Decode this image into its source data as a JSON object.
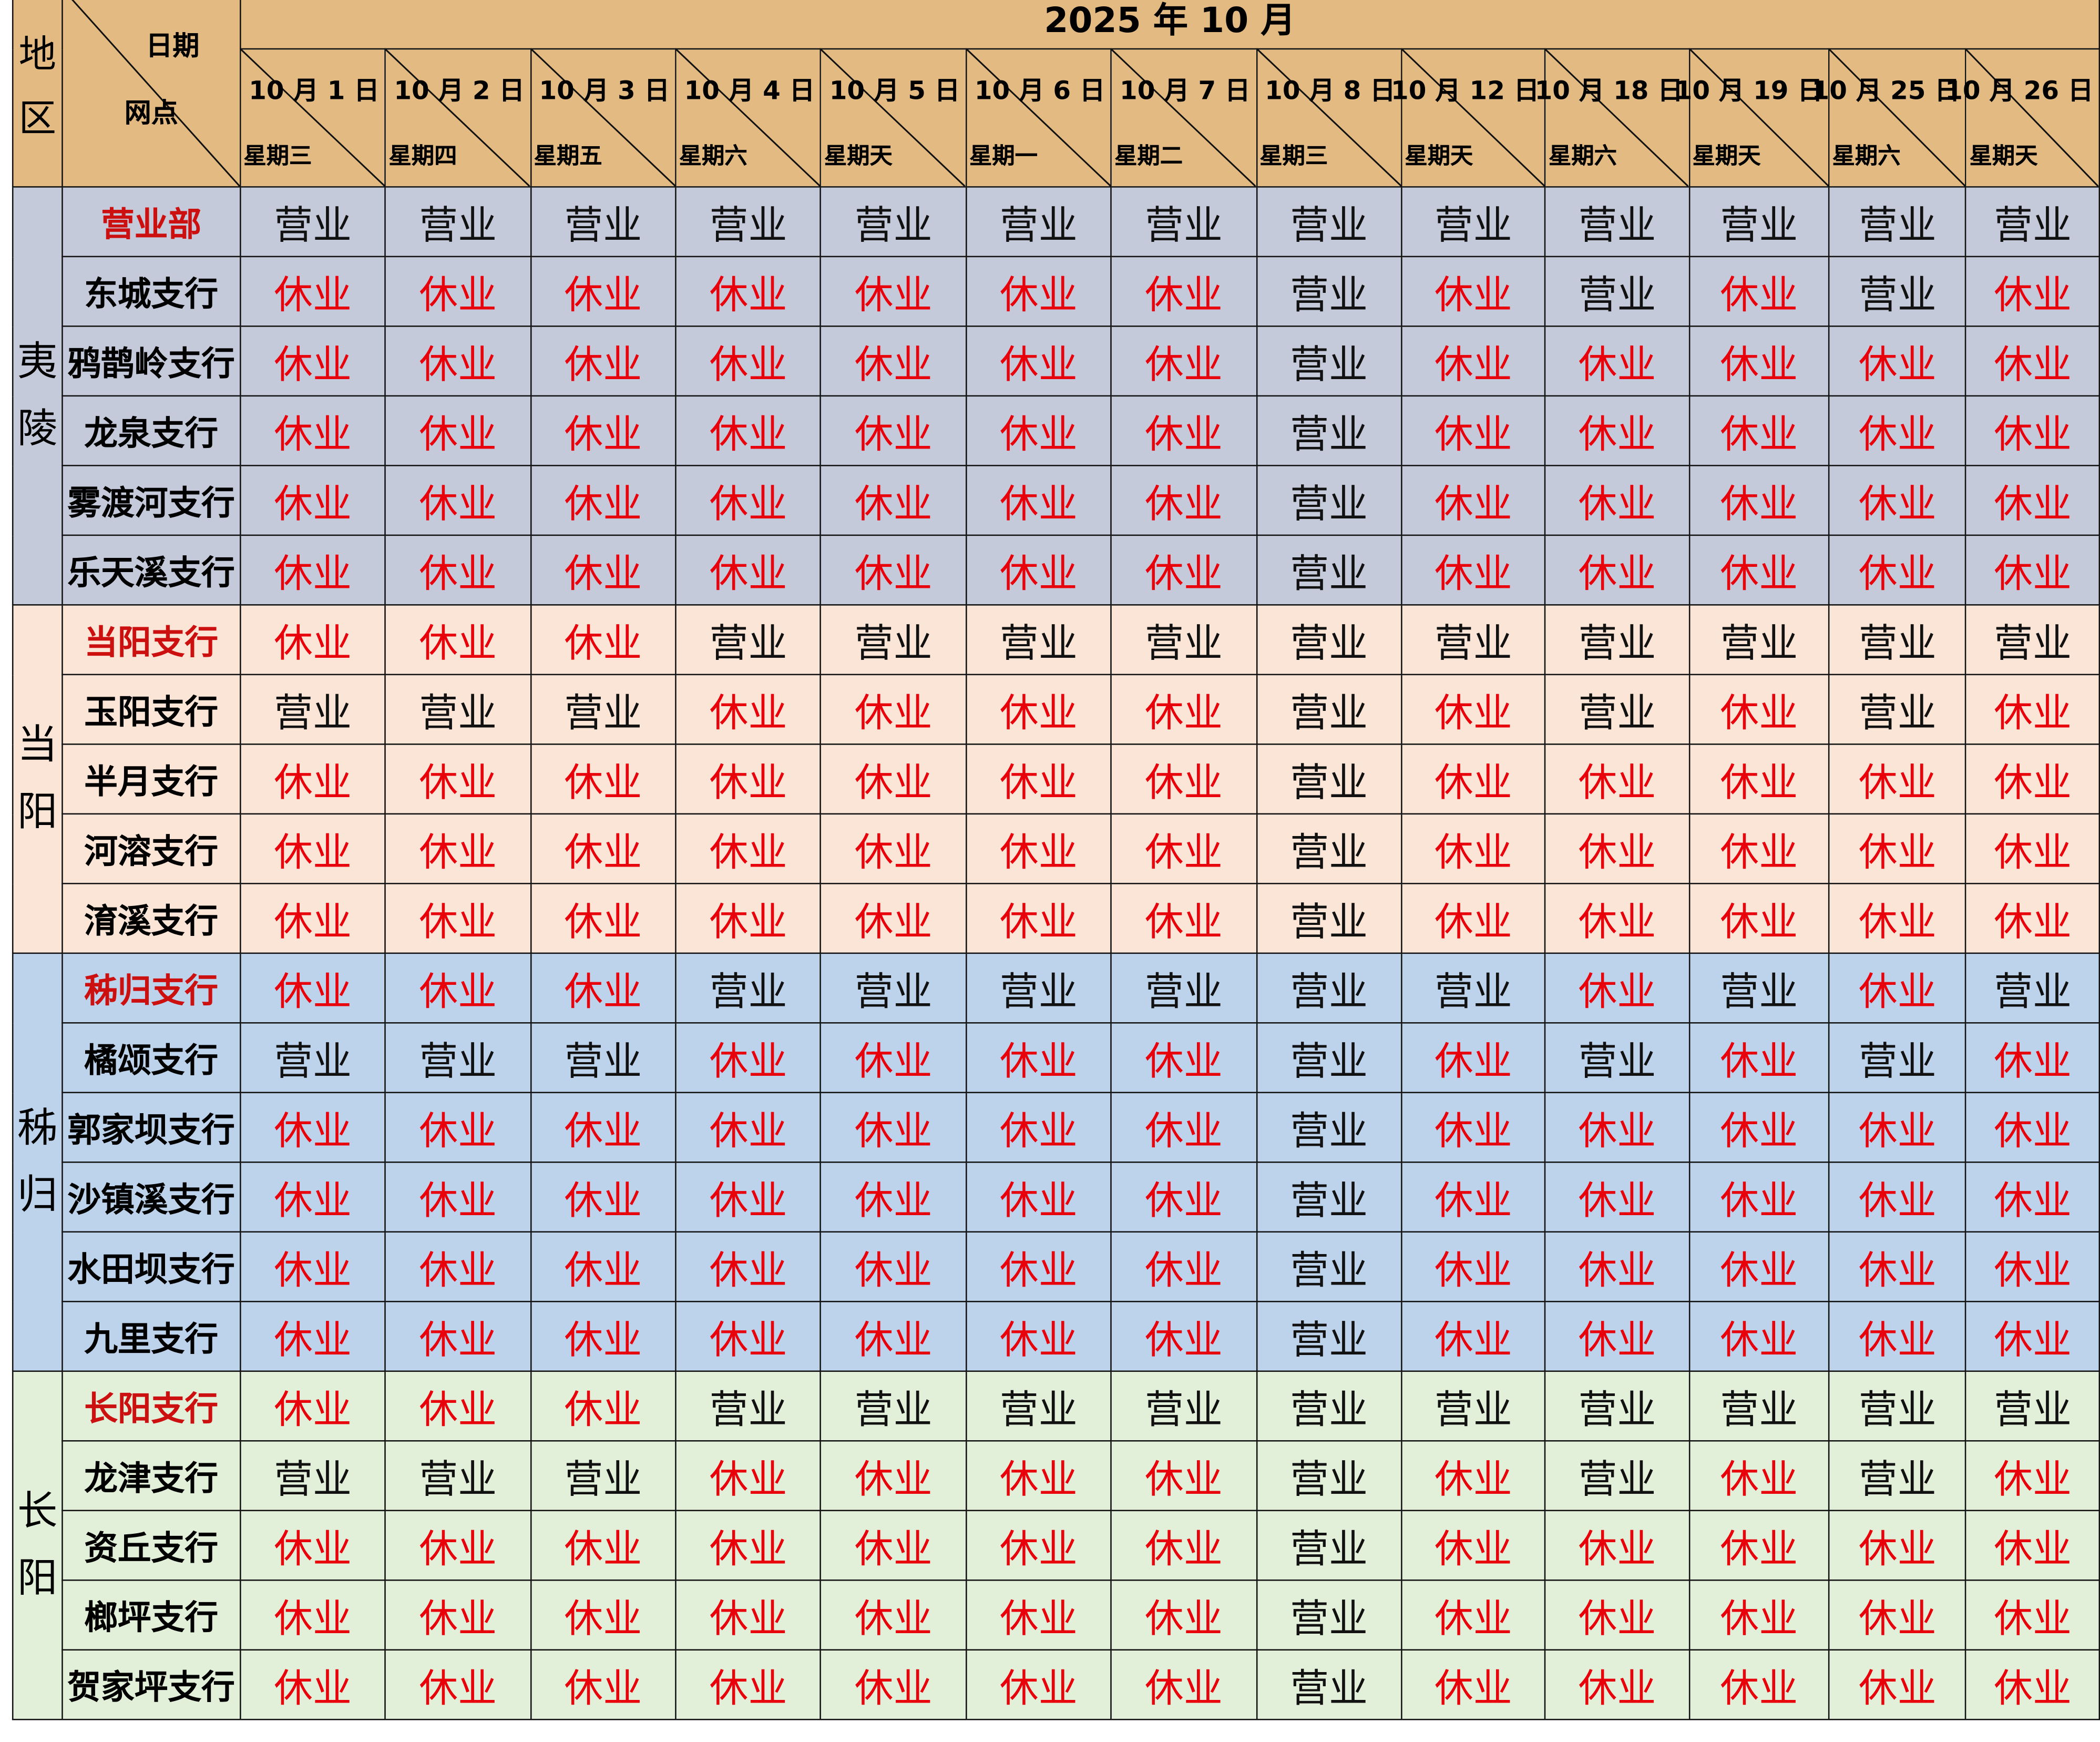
{
  "header": {
    "title": "2025 年 10 月",
    "region_label": "地\n区",
    "corner_date_label": "日期",
    "corner_site_label": "网点"
  },
  "colors": {
    "header": "#e2ba82",
    "open": "#111111",
    "closed": "#e8000b",
    "main_branch": "#cc1010"
  },
  "dates": [
    {
      "date": "10 月 1 日",
      "weekday": "星期三"
    },
    {
      "date": "10 月  2 日",
      "weekday": "星期四"
    },
    {
      "date": "10 月 3 日",
      "weekday": "星期五"
    },
    {
      "date": "10 月 4 日",
      "weekday": "星期六"
    },
    {
      "date": "10 月 5 日",
      "weekday": "星期天"
    },
    {
      "date": "10 月 6 日",
      "weekday": "星期一"
    },
    {
      "date": "10 月 7 日",
      "weekday": "星期二"
    },
    {
      "date": "10 月 8 日",
      "weekday": "星期三"
    },
    {
      "date": "10 月 12 日",
      "weekday": "星期天"
    },
    {
      "date": "10 月 18 日",
      "weekday": "星期六"
    },
    {
      "date": "10 月 19 日",
      "weekday": "星期天"
    },
    {
      "date": "10 月 25 日",
      "weekday": "星期六"
    },
    {
      "date": "10 月 26 日",
      "weekday": "星期天"
    }
  ],
  "regions": [
    {
      "name": "夷陵",
      "bg": "#c5cadb",
      "branches": [
        {
          "name": "营业部",
          "main": true,
          "status": [
            "营业",
            "营业",
            "营业",
            "营业",
            "营业",
            "营业",
            "营业",
            "营业",
            "营业",
            "营业",
            "营业",
            "营业",
            "营业"
          ]
        },
        {
          "name": "东城支行",
          "main": false,
          "status": [
            "休业",
            "休业",
            "休业",
            "休业",
            "休业",
            "休业",
            "休业",
            "营业",
            "休业",
            "营业",
            "休业",
            "营业",
            "休业"
          ]
        },
        {
          "name": "鸦鹊岭支行",
          "main": false,
          "status": [
            "休业",
            "休业",
            "休业",
            "休业",
            "休业",
            "休业",
            "休业",
            "营业",
            "休业",
            "休业",
            "休业",
            "休业",
            "休业"
          ]
        },
        {
          "name": "龙泉支行",
          "main": false,
          "status": [
            "休业",
            "休业",
            "休业",
            "休业",
            "休业",
            "休业",
            "休业",
            "营业",
            "休业",
            "休业",
            "休业",
            "休业",
            "休业"
          ]
        },
        {
          "name": "雾渡河支行",
          "main": false,
          "status": [
            "休业",
            "休业",
            "休业",
            "休业",
            "休业",
            "休业",
            "休业",
            "营业",
            "休业",
            "休业",
            "休业",
            "休业",
            "休业"
          ]
        },
        {
          "name": "乐天溪支行",
          "main": false,
          "status": [
            "休业",
            "休业",
            "休业",
            "休业",
            "休业",
            "休业",
            "休业",
            "营业",
            "休业",
            "休业",
            "休业",
            "休业",
            "休业"
          ]
        }
      ]
    },
    {
      "name": "当阳",
      "bg": "#fbe5d6",
      "branches": [
        {
          "name": "当阳支行",
          "main": true,
          "status": [
            "休业",
            "休业",
            "休业",
            "营业",
            "营业",
            "营业",
            "营业",
            "营业",
            "营业",
            "营业",
            "营业",
            "营业",
            "营业"
          ]
        },
        {
          "name": "玉阳支行",
          "main": false,
          "status": [
            "营业",
            "营业",
            "营业",
            "休业",
            "休业",
            "休业",
            "休业",
            "营业",
            "休业",
            "营业",
            "休业",
            "营业",
            "休业"
          ]
        },
        {
          "name": "半月支行",
          "main": false,
          "status": [
            "休业",
            "休业",
            "休业",
            "休业",
            "休业",
            "休业",
            "休业",
            "营业",
            "休业",
            "休业",
            "休业",
            "休业",
            "休业"
          ]
        },
        {
          "name": "河溶支行",
          "main": false,
          "status": [
            "休业",
            "休业",
            "休业",
            "休业",
            "休业",
            "休业",
            "休业",
            "营业",
            "休业",
            "休业",
            "休业",
            "休业",
            "休业"
          ]
        },
        {
          "name": "淯溪支行",
          "main": false,
          "status": [
            "休业",
            "休业",
            "休业",
            "休业",
            "休业",
            "休业",
            "休业",
            "营业",
            "休业",
            "休业",
            "休业",
            "休业",
            "休业"
          ]
        }
      ]
    },
    {
      "name": "秭归",
      "bg": "#bdd3ec",
      "branches": [
        {
          "name": "秭归支行",
          "main": true,
          "status": [
            "休业",
            "休业",
            "休业",
            "营业",
            "营业",
            "营业",
            "营业",
            "营业",
            "营业",
            "休业",
            "营业",
            "休业",
            "营业"
          ]
        },
        {
          "name": "橘颂支行",
          "main": false,
          "status": [
            "营业",
            "营业",
            "营业",
            "休业",
            "休业",
            "休业",
            "休业",
            "营业",
            "休业",
            "营业",
            "休业",
            "营业",
            "休业"
          ]
        },
        {
          "name": "郭家坝支行",
          "main": false,
          "status": [
            "休业",
            "休业",
            "休业",
            "休业",
            "休业",
            "休业",
            "休业",
            "营业",
            "休业",
            "休业",
            "休业",
            "休业",
            "休业"
          ]
        },
        {
          "name": "沙镇溪支行",
          "main": false,
          "status": [
            "休业",
            "休业",
            "休业",
            "休业",
            "休业",
            "休业",
            "休业",
            "营业",
            "休业",
            "休业",
            "休业",
            "休业",
            "休业"
          ]
        },
        {
          "name": "水田坝支行",
          "main": false,
          "status": [
            "休业",
            "休业",
            "休业",
            "休业",
            "休业",
            "休业",
            "休业",
            "营业",
            "休业",
            "休业",
            "休业",
            "休业",
            "休业"
          ]
        },
        {
          "name": "九里支行",
          "main": false,
          "status": [
            "休业",
            "休业",
            "休业",
            "休业",
            "休业",
            "休业",
            "休业",
            "营业",
            "休业",
            "休业",
            "休业",
            "休业",
            "休业"
          ]
        }
      ]
    },
    {
      "name": "长阳",
      "bg": "#e2efd9",
      "branches": [
        {
          "name": "长阳支行",
          "main": true,
          "status": [
            "休业",
            "休业",
            "休业",
            "营业",
            "营业",
            "营业",
            "营业",
            "营业",
            "营业",
            "营业",
            "营业",
            "营业",
            "营业"
          ]
        },
        {
          "name": "龙津支行",
          "main": false,
          "status": [
            "营业",
            "营业",
            "营业",
            "休业",
            "休业",
            "休业",
            "休业",
            "营业",
            "休业",
            "营业",
            "休业",
            "营业",
            "休业"
          ]
        },
        {
          "name": "资丘支行",
          "main": false,
          "status": [
            "休业",
            "休业",
            "休业",
            "休业",
            "休业",
            "休业",
            "休业",
            "营业",
            "休业",
            "休业",
            "休业",
            "休业",
            "休业"
          ]
        },
        {
          "name": "榔坪支行",
          "main": false,
          "status": [
            "休业",
            "休业",
            "休业",
            "休业",
            "休业",
            "休业",
            "休业",
            "营业",
            "休业",
            "休业",
            "休业",
            "休业",
            "休业"
          ]
        },
        {
          "name": "贺家坪支行",
          "main": false,
          "status": [
            "休业",
            "休业",
            "休业",
            "休业",
            "休业",
            "休业",
            "休业",
            "营业",
            "休业",
            "休业",
            "休业",
            "休业",
            "休业"
          ]
        }
      ]
    }
  ]
}
